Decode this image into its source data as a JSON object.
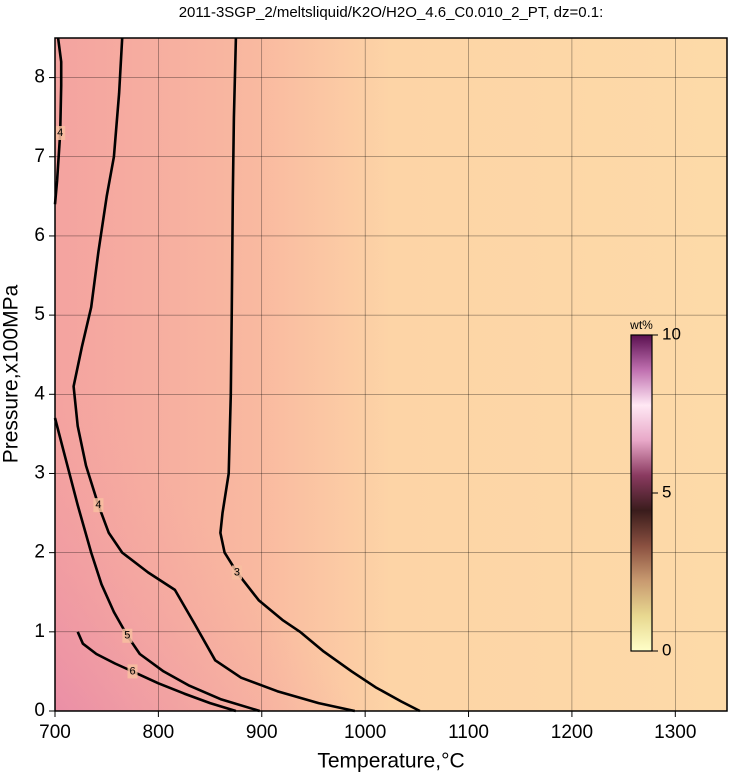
{
  "chart_data": {
    "type": "contour",
    "title": "2011-3SGP_2/meltsliquid/K2O/H2O_4.6_C0.010_2_PT, dz=0.1:",
    "x_label": "Temperature,°C",
    "y_label": "Pressure,x100MPa",
    "xlim": [
      700,
      1350
    ],
    "ylim": [
      0,
      8.5
    ],
    "xticks": [
      700,
      800,
      900,
      1000,
      1100,
      1200,
      1300
    ],
    "yticks": [
      0,
      1,
      2,
      3,
      4,
      5,
      6,
      7,
      8
    ],
    "grid": true,
    "line_color": "#000000",
    "contours": [
      {
        "level": 3,
        "x": [
          875,
          873,
          872,
          871,
          870,
          868,
          862,
          860,
          864,
          876,
          897,
          920,
          937,
          960,
          987,
          1010,
          1035,
          1053
        ],
        "y": [
          8.5,
          7.5,
          6.5,
          5.1,
          4.0,
          3.0,
          2.5,
          2.25,
          2.0,
          1.75,
          1.4,
          1.15,
          1.0,
          0.75,
          0.5,
          0.3,
          0.12,
          0
        ]
      },
      {
        "level": 4,
        "x": [
          765,
          762,
          757,
          750,
          742,
          735,
          726,
          718,
          722,
          730,
          742,
          752,
          765,
          790,
          816,
          835,
          855,
          880,
          915,
          955,
          990
        ],
        "y": [
          8.5,
          7.8,
          7.0,
          6.5,
          5.8,
          5.1,
          4.6,
          4.1,
          3.6,
          3.1,
          2.6,
          2.25,
          2.0,
          1.75,
          1.53,
          1.1,
          0.64,
          0.42,
          0.25,
          0.1,
          0
        ]
      },
      {
        "level": 4,
        "x": [
          703,
          706,
          706,
          705,
          702,
          700
        ],
        "y": [
          8.5,
          8.2,
          7.9,
          7.3,
          6.7,
          6.4
        ]
      },
      {
        "level": 5,
        "x": [
          700,
          710,
          722,
          735,
          745,
          757,
          770,
          782,
          805,
          830,
          860,
          898
        ],
        "y": [
          3.7,
          3.2,
          2.6,
          2.0,
          1.6,
          1.25,
          0.95,
          0.72,
          0.5,
          0.32,
          0.15,
          0
        ]
      },
      {
        "level": 6,
        "x": [
          722,
          727,
          740,
          758,
          775,
          800,
          825,
          850,
          875
        ],
        "y": [
          1.0,
          0.85,
          0.72,
          0.6,
          0.5,
          0.35,
          0.22,
          0.1,
          0
        ]
      }
    ],
    "colorbar": {
      "label": "wt%",
      "lim": [
        0,
        10
      ],
      "ticks": [
        0,
        5,
        10
      ],
      "colors": [
        "#ffffc8",
        "#e8d890",
        "#c89a70",
        "#8a5040",
        "#3a1c1c",
        "#8a3a60",
        "#e8a8c8",
        "#ffe8f4",
        "#c070b0",
        "#5a1050"
      ]
    }
  }
}
